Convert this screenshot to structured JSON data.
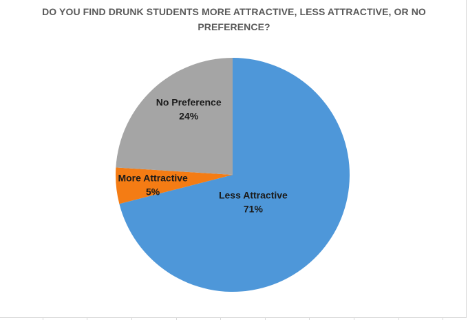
{
  "chart_data": {
    "type": "pie",
    "title": "DO YOU FIND DRUNK STUDENTS MORE ATTRACTIVE, LESS ATTRACTIVE, OR NO PREFERENCE?",
    "slices": [
      {
        "label": "Less Attractive",
        "value": 71,
        "value_label": "71%",
        "color": "#4e97d9"
      },
      {
        "label": "More Attractive",
        "value": 5,
        "value_label": "5%",
        "color": "#f47c14"
      },
      {
        "label": "No Preference",
        "value": 24,
        "value_label": "24%",
        "color": "#a5a5a5"
      }
    ],
    "start_angle": "12 o'clock, clockwise",
    "legend": "none",
    "label_color": "#1a1a1a"
  }
}
